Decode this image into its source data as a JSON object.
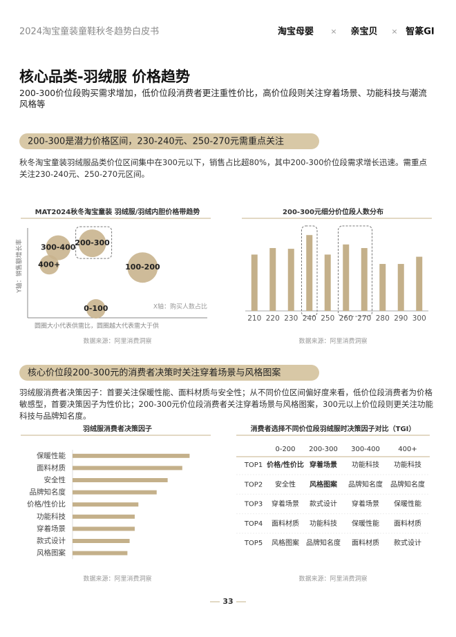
{
  "header": {
    "title": "2024淘宝童装童鞋秋冬趋势白皮书",
    "logos": [
      "淘宝母婴",
      "亲宝贝",
      "智篆GI"
    ],
    "separator": "×"
  },
  "title": "核心品类-羽绒服 价格趋势",
  "subtitle": "200-300价位段购买需求增加，低价位段消费者更注重性价比，高价位段则关注穿着场景、功能科技与潮流风格等",
  "sections": [
    {
      "heading": "200-300是潜力价格区间，230-240元、250-270元需重点关注",
      "text": "秋冬淘宝童装羽绒服品类价位区间集中在300元以下，销售占比超80%，其中200-300价位段需求增长迅速。需重点关注230-240元、250-270元区间。"
    },
    {
      "heading": "核心价位段200-300元的消费者决策时关注穿着场景与风格图案",
      "text": "羽绒服消费者决策因子：首要关注保暖性能、面料材质与安全性；从不同价位区间偏好度来看，低价位段消费者为价格敏感型，首要决策因子为性价比；200-300元价位段消费者关注穿着场景与风格图案，300元以上价位段则更关注功能科技与品牌知名度。"
    }
  ],
  "chart_data": [
    {
      "type": "scatter",
      "title": "MAT2024秋冬淘宝童装 羽绒服/羽绒内胆价格带趋势",
      "labels": [
        "300-400",
        "200-300",
        "400+",
        "100-200",
        "0-100"
      ],
      "x": [
        17,
        36,
        12,
        64,
        38
      ],
      "values": [
        78,
        83,
        59,
        56,
        10
      ],
      "sizes": [
        18,
        20,
        14,
        22,
        14
      ],
      "xlim": [
        0,
        100
      ],
      "ylim": [
        0,
        100
      ],
      "color": "#c9b48e",
      "x_label": "X轴：购买人数占比",
      "y_label": "Y轴：销售额增长率",
      "note": "圆圈大小代表供需比，圆圈越大代表需大于供",
      "source": "数据来源：阿里消费洞察"
    },
    {
      "type": "bar",
      "title": "200-300元细分价位段人数分布",
      "categories": [
        "210",
        "220",
        "230",
        "240",
        "250",
        "260",
        "270",
        "280",
        "290",
        "300"
      ],
      "values": [
        78,
        87,
        86,
        105,
        78,
        92,
        87,
        65,
        65,
        75
      ],
      "ylim": [
        0,
        110
      ],
      "color": "#c4b08a",
      "source": "数据来源：阿里消费洞察"
    },
    {
      "type": "hbar",
      "title": "羽绒服消费者决策因子",
      "categories": [
        "保暖性能",
        "面料材质",
        "安全性",
        "品牌知名度",
        "价格/性价比",
        "功能科技",
        "穿着场景",
        "款式设计",
        "风格图案"
      ],
      "values": [
        160,
        150,
        130,
        115,
        90,
        85,
        85,
        78,
        75
      ],
      "xlim": [
        0,
        170
      ],
      "color": "#c4b08a",
      "source": "数据来源：阿里消费洞察"
    }
  ],
  "table": {
    "title": "消费者选择不同价位段羽绒服时决策因子对比（TGI）",
    "columns": [
      "0-200",
      "200-300",
      "300-400",
      "400+"
    ],
    "rows": [
      [
        "TOP1",
        "价格/性价比",
        "穿着场景",
        "功能科技",
        "功能科技"
      ],
      [
        "TOP2",
        "安全性",
        "风格图案",
        "品牌知名度",
        "品牌知名度"
      ],
      [
        "TOP3",
        "穿着场景",
        "款式设计",
        "穿着场景",
        "保暖性能"
      ],
      [
        "TOP4",
        "面料材质",
        "功能科技",
        "保暖性能",
        "面料材质"
      ],
      [
        "TOP5",
        "风格图案",
        "品牌知名度",
        "面料材质",
        "款式设计"
      ]
    ],
    "source": "数据来源：阿里消费洞察"
  },
  "page_number": "33"
}
